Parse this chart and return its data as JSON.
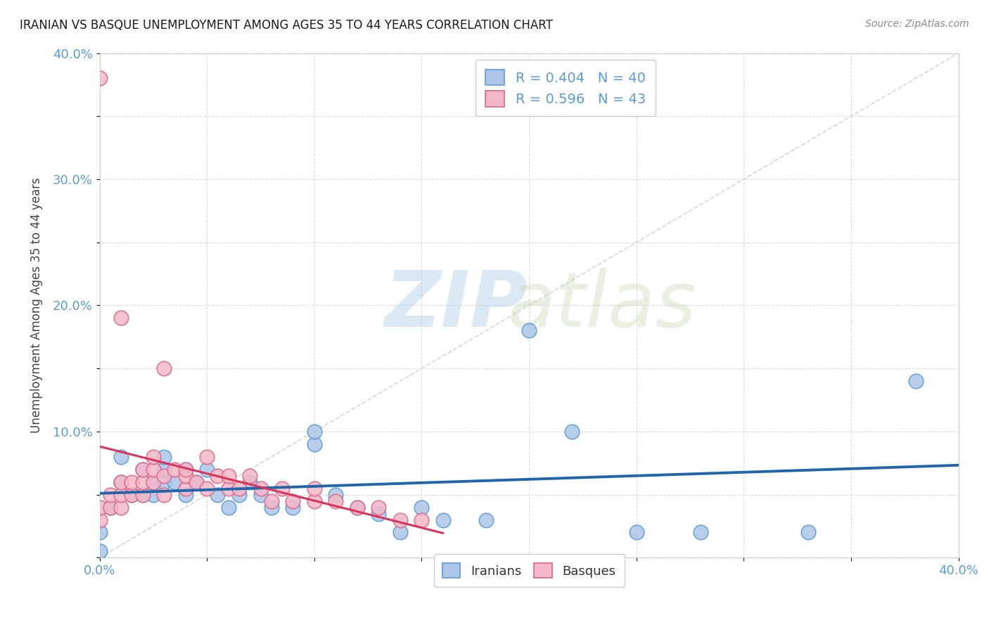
{
  "title": "IRANIAN VS BASQUE UNEMPLOYMENT AMONG AGES 35 TO 44 YEARS CORRELATION CHART",
  "source": "Source: ZipAtlas.com",
  "ylabel": "Unemployment Among Ages 35 to 44 years",
  "xlim": [
    0.0,
    0.4
  ],
  "ylim": [
    0.0,
    0.4
  ],
  "x_ticks": [
    0.0,
    0.05,
    0.1,
    0.15,
    0.2,
    0.25,
    0.3,
    0.35,
    0.4
  ],
  "y_ticks": [
    0.0,
    0.05,
    0.1,
    0.15,
    0.2,
    0.25,
    0.3,
    0.35,
    0.4
  ],
  "x_tick_labels": [
    "0.0%",
    "",
    "",
    "",
    "",
    "",
    "",
    "",
    "40.0%"
  ],
  "y_tick_labels": [
    "",
    "",
    "10.0%",
    "",
    "20.0%",
    "",
    "30.0%",
    "",
    "40.0%"
  ],
  "iranians_color": "#adc6e8",
  "iranians_edge_color": "#5b9bd5",
  "basques_color": "#f4b8c8",
  "basques_edge_color": "#d9668a",
  "iranians_line_color": "#2166ac",
  "basques_line_color": "#d9345a",
  "R_iranians": 0.404,
  "N_iranians": 40,
  "R_basques": 0.596,
  "N_basques": 43,
  "watermark_zip": "ZIP",
  "watermark_atlas": "atlas",
  "background_color": "#ffffff",
  "grid_color": "#d8d8d8",
  "iranians_x": [
    0.0,
    0.0,
    0.005,
    0.01,
    0.01,
    0.015,
    0.02,
    0.02,
    0.025,
    0.025,
    0.03,
    0.03,
    0.03,
    0.035,
    0.04,
    0.04,
    0.045,
    0.05,
    0.055,
    0.06,
    0.065,
    0.07,
    0.075,
    0.08,
    0.09,
    0.1,
    0.1,
    0.11,
    0.12,
    0.13,
    0.14,
    0.15,
    0.16,
    0.18,
    0.2,
    0.22,
    0.25,
    0.28,
    0.33,
    0.38
  ],
  "iranians_y": [
    0.005,
    0.02,
    0.04,
    0.06,
    0.08,
    0.05,
    0.05,
    0.07,
    0.05,
    0.06,
    0.06,
    0.07,
    0.08,
    0.06,
    0.05,
    0.07,
    0.06,
    0.07,
    0.05,
    0.04,
    0.05,
    0.06,
    0.05,
    0.04,
    0.04,
    0.09,
    0.1,
    0.05,
    0.04,
    0.035,
    0.02,
    0.04,
    0.03,
    0.03,
    0.18,
    0.1,
    0.02,
    0.02,
    0.02,
    0.14
  ],
  "basques_x": [
    0.0,
    0.0,
    0.0,
    0.005,
    0.005,
    0.01,
    0.01,
    0.01,
    0.01,
    0.015,
    0.015,
    0.02,
    0.02,
    0.02,
    0.025,
    0.025,
    0.025,
    0.03,
    0.03,
    0.03,
    0.035,
    0.04,
    0.04,
    0.04,
    0.045,
    0.05,
    0.05,
    0.055,
    0.06,
    0.06,
    0.065,
    0.07,
    0.075,
    0.08,
    0.085,
    0.09,
    0.1,
    0.1,
    0.11,
    0.12,
    0.13,
    0.14,
    0.15
  ],
  "basques_y": [
    0.03,
    0.04,
    0.38,
    0.04,
    0.05,
    0.04,
    0.05,
    0.06,
    0.19,
    0.05,
    0.06,
    0.05,
    0.06,
    0.07,
    0.06,
    0.07,
    0.08,
    0.05,
    0.065,
    0.15,
    0.07,
    0.055,
    0.065,
    0.07,
    0.06,
    0.055,
    0.08,
    0.065,
    0.055,
    0.065,
    0.055,
    0.065,
    0.055,
    0.045,
    0.055,
    0.045,
    0.045,
    0.055,
    0.045,
    0.04,
    0.04,
    0.03,
    0.03
  ],
  "diag_line_color": "#cccccc"
}
